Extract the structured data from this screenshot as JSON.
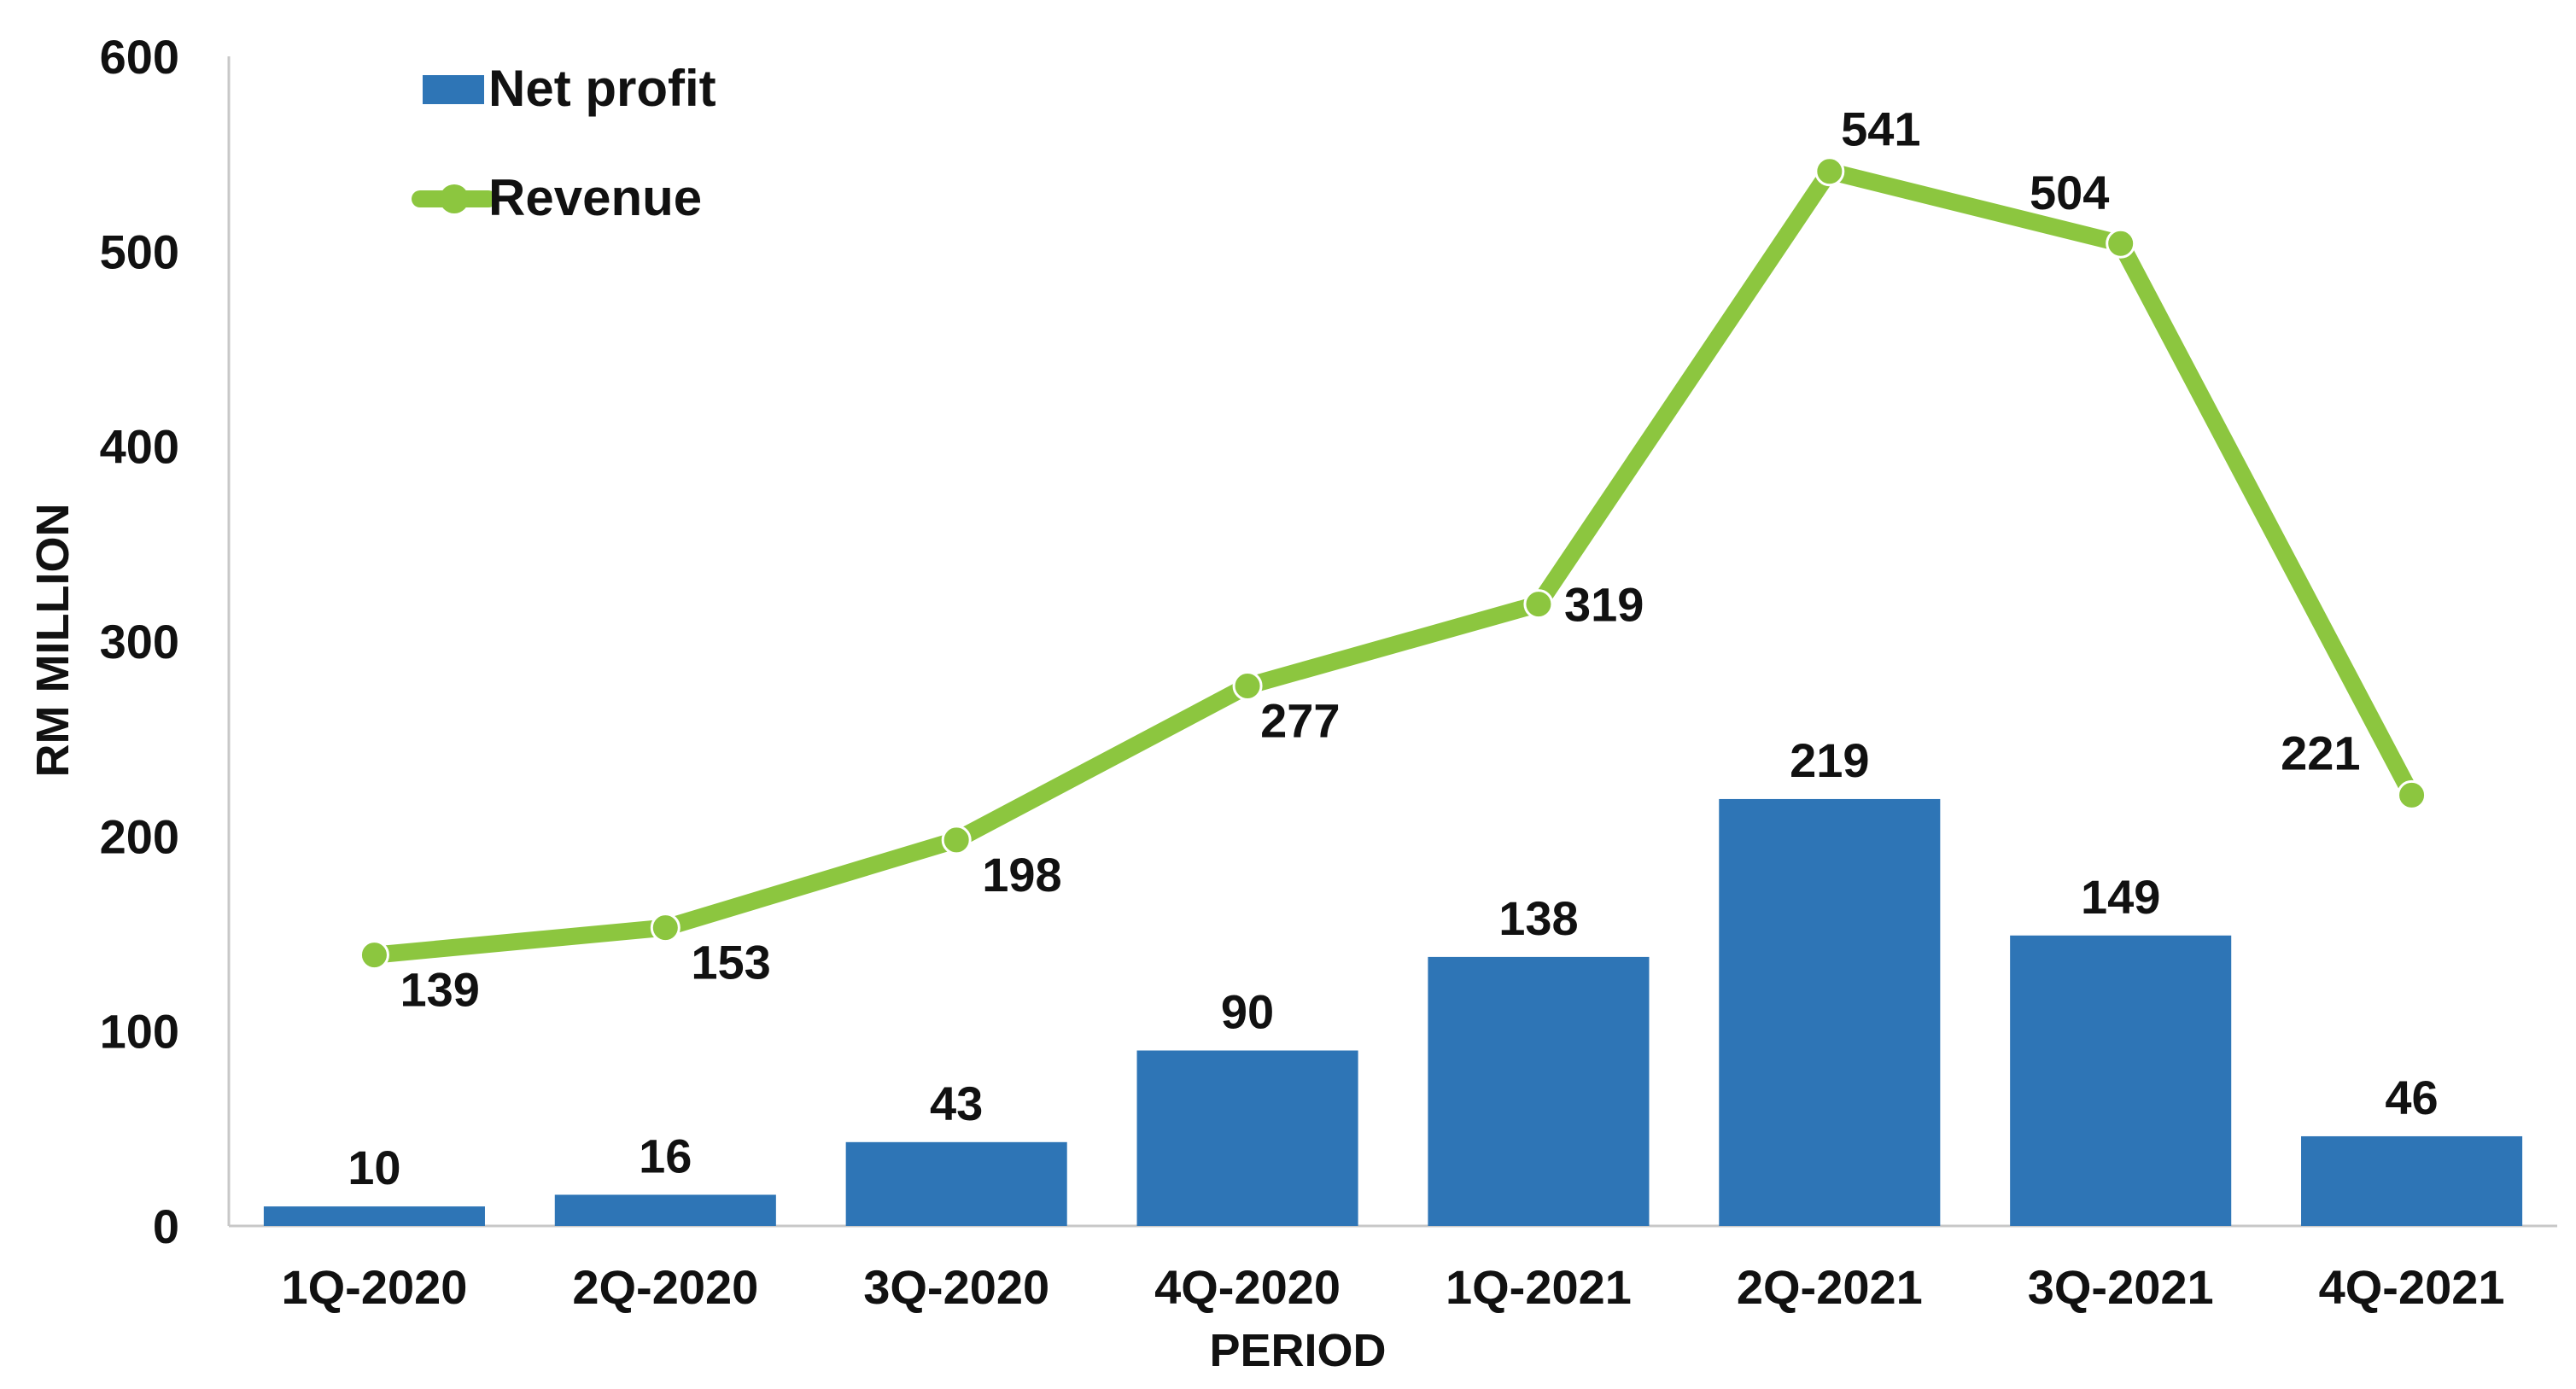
{
  "chart_data": {
    "type": "bar+line",
    "title": "",
    "xlabel": "PERIOD",
    "ylabel": "RM MILLION",
    "ylim": [
      0,
      600
    ],
    "yticks": [
      0,
      100,
      200,
      300,
      400,
      500,
      600
    ],
    "grid": false,
    "legend_position": "top-left",
    "categories": [
      "1Q-2020",
      "2Q-2020",
      "3Q-2020",
      "4Q-2020",
      "1Q-2021",
      "2Q-2021",
      "3Q-2021",
      "4Q-2021"
    ],
    "series": [
      {
        "name": "Net profit",
        "type": "bar",
        "color": "#2e75b6",
        "values": [
          10,
          16,
          43,
          90,
          138,
          219,
          149,
          46
        ],
        "labels": [
          "10",
          "16",
          "43",
          "90",
          "138",
          "219",
          "149",
          "46"
        ]
      },
      {
        "name": "Revenue",
        "type": "line",
        "color": "#8cc63f",
        "values": [
          139,
          153,
          198,
          277,
          319,
          541,
          504,
          221
        ],
        "labels": [
          "139",
          "153",
          "198",
          "277",
          "319",
          "541",
          "504",
          "221"
        ]
      }
    ]
  }
}
